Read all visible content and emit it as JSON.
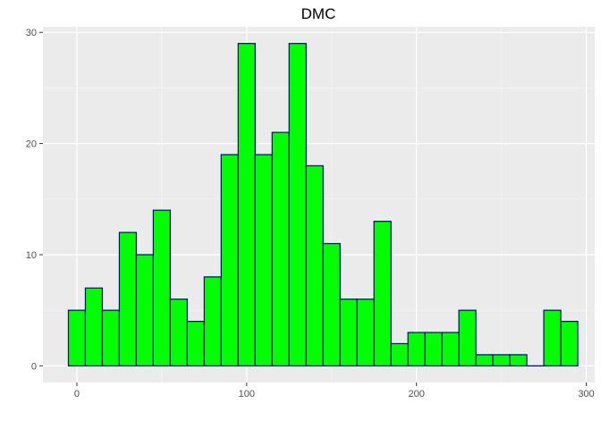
{
  "chart_data": {
    "type": "bar",
    "title": "DMC",
    "xlabel": "",
    "ylabel": "",
    "grid": true,
    "xlim": [
      -20,
      305
    ],
    "ylim": [
      -1.5,
      30.5
    ],
    "x_ticks": [
      0,
      100,
      200,
      300
    ],
    "y_ticks": [
      0,
      10,
      20,
      30
    ],
    "bin_width": 10,
    "bins": [
      {
        "x0": -5,
        "x1": 5,
        "count": 5
      },
      {
        "x0": 5,
        "x1": 15,
        "count": 7
      },
      {
        "x0": 15,
        "x1": 25,
        "count": 5
      },
      {
        "x0": 25,
        "x1": 35,
        "count": 12
      },
      {
        "x0": 35,
        "x1": 45,
        "count": 10
      },
      {
        "x0": 45,
        "x1": 55,
        "count": 14
      },
      {
        "x0": 55,
        "x1": 65,
        "count": 6
      },
      {
        "x0": 65,
        "x1": 75,
        "count": 4
      },
      {
        "x0": 75,
        "x1": 85,
        "count": 8
      },
      {
        "x0": 85,
        "x1": 95,
        "count": 19
      },
      {
        "x0": 95,
        "x1": 105,
        "count": 29
      },
      {
        "x0": 105,
        "x1": 115,
        "count": 19
      },
      {
        "x0": 115,
        "x1": 125,
        "count": 21
      },
      {
        "x0": 125,
        "x1": 135,
        "count": 29
      },
      {
        "x0": 135,
        "x1": 145,
        "count": 18
      },
      {
        "x0": 145,
        "x1": 155,
        "count": 11
      },
      {
        "x0": 155,
        "x1": 165,
        "count": 6
      },
      {
        "x0": 165,
        "x1": 175,
        "count": 6
      },
      {
        "x0": 175,
        "x1": 185,
        "count": 13
      },
      {
        "x0": 185,
        "x1": 195,
        "count": 2
      },
      {
        "x0": 195,
        "x1": 205,
        "count": 3
      },
      {
        "x0": 205,
        "x1": 215,
        "count": 3
      },
      {
        "x0": 215,
        "x1": 225,
        "count": 3
      },
      {
        "x0": 225,
        "x1": 235,
        "count": 5
      },
      {
        "x0": 235,
        "x1": 245,
        "count": 1
      },
      {
        "x0": 245,
        "x1": 255,
        "count": 1
      },
      {
        "x0": 255,
        "x1": 265,
        "count": 1
      },
      {
        "x0": 265,
        "x1": 275,
        "count": 0
      },
      {
        "x0": 275,
        "x1": 285,
        "count": 5
      },
      {
        "x0": 285,
        "x1": 295,
        "count": 4
      }
    ],
    "colors": {
      "bar_fill": "#00ff00",
      "bar_stroke": "#00008b",
      "panel_background": "#ebebeb",
      "grid_major": "#ffffff",
      "grid_minor": "#f5f5f5",
      "tick_text": "#4d4d4d",
      "tick_mark": "#333333"
    }
  }
}
